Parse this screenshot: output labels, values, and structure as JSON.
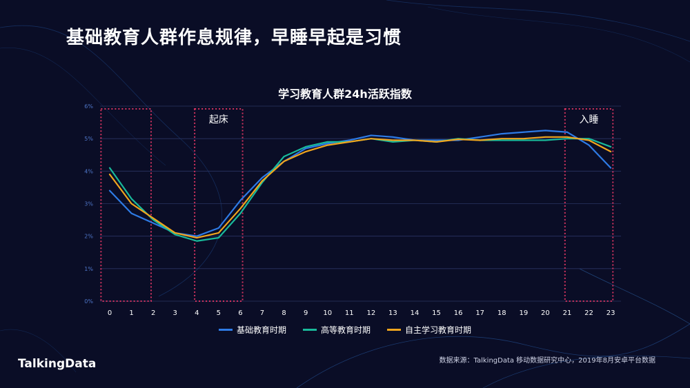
{
  "page_title": "基础教育人群作息规律，早睡早起是习惯",
  "source_note": "数据来源：TalkingData 移动数据研究中心，2019年8月安卓平台数据",
  "logo_text": "TalkingData",
  "colors": {
    "background": "#0a0d26",
    "grid": "#2a3563",
    "tick_label": "#4f76c8",
    "highlight_box": "#d2335f"
  },
  "chart_data": {
    "type": "line",
    "title": "学习教育人群24h活跃指数",
    "xlabel": "",
    "ylabel": "",
    "ylim": [
      0,
      6
    ],
    "y_ticks": [
      "0%",
      "1%",
      "2%",
      "3%",
      "4%",
      "5%",
      "6%"
    ],
    "grid": true,
    "legend_position": "bottom",
    "x": [
      0,
      1,
      2,
      3,
      4,
      5,
      6,
      7,
      8,
      9,
      10,
      11,
      12,
      13,
      14,
      15,
      16,
      17,
      18,
      19,
      20,
      21,
      22,
      23
    ],
    "series": [
      {
        "name": "基础教育时期",
        "color": "#2e7be6",
        "values": [
          3.4,
          2.7,
          2.4,
          2.1,
          2.0,
          2.25,
          3.1,
          3.8,
          4.3,
          4.7,
          4.85,
          4.95,
          5.1,
          5.05,
          4.95,
          4.95,
          4.95,
          5.05,
          5.15,
          5.2,
          5.25,
          5.2,
          4.8,
          4.1
        ]
      },
      {
        "name": "高等教育时期",
        "color": "#19b99a",
        "values": [
          4.1,
          3.15,
          2.5,
          2.05,
          1.85,
          1.95,
          2.7,
          3.65,
          4.45,
          4.75,
          4.9,
          4.9,
          5.0,
          4.9,
          4.95,
          4.9,
          5.0,
          4.95,
          4.95,
          4.95,
          4.95,
          5.0,
          5.0,
          4.75
        ]
      },
      {
        "name": "自主学习教育时期",
        "color": "#f0a51e",
        "values": [
          3.9,
          3.0,
          2.55,
          2.1,
          1.95,
          2.1,
          2.85,
          3.7,
          4.3,
          4.6,
          4.8,
          4.9,
          5.0,
          4.95,
          4.95,
          4.9,
          4.98,
          4.95,
          5.0,
          5.0,
          5.05,
          5.05,
          4.95,
          4.6
        ]
      }
    ],
    "annotations": [
      {
        "label": "",
        "x_start": -0.4,
        "x_end": 1.9
      },
      {
        "label": "起床",
        "x_start": 3.9,
        "x_end": 6.1
      },
      {
        "label": "入睡",
        "x_start": 20.9,
        "x_end": 23.1
      }
    ]
  }
}
